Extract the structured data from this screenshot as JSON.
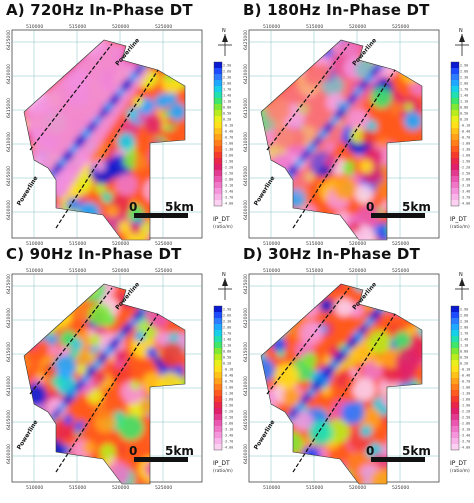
{
  "panels": [
    {
      "title": "A) 720Hz In-Phase DT",
      "bias": 0.9,
      "seed": 11
    },
    {
      "title": "B) 180Hz In-Phase DT",
      "bias": 0.45,
      "seed": 29
    },
    {
      "title": "C) 90Hz In-Phase DT",
      "bias": 0.15,
      "seed": 47
    },
    {
      "title": "D) 30Hz In-Phase DT",
      "bias": 0.1,
      "seed": 63
    }
  ],
  "map": {
    "x_ticks": [
      "510000",
      "515000",
      "520000",
      "525000"
    ],
    "y_ticks": [
      "6425000",
      "6420000",
      "6415000",
      "6410000",
      "6405000",
      "6400000"
    ],
    "scale_label": "5km",
    "scale_origin": "0",
    "powerline_label": "Powerline",
    "north_label": "N"
  },
  "legend": {
    "title": "IP_DT",
    "unit": "(ratio/m)",
    "values": [
      "2.90",
      "2.60",
      "2.30",
      "2.00",
      "1.70",
      "1.40",
      "1.10",
      "0.80",
      "0.50",
      "0.20",
      "-0.10",
      "-0.40",
      "-0.70",
      "-1.00",
      "-1.30",
      "-1.60",
      "-1.90",
      "-2.20",
      "-2.50",
      "-2.80",
      "-3.10",
      "-3.40",
      "-3.70",
      "-4.00"
    ],
    "colors": [
      "#0a1ad0",
      "#1f4bff",
      "#2d7bff",
      "#1fa8ff",
      "#17cfe8",
      "#22e0b0",
      "#3fe66a",
      "#7fe834",
      "#b9ec1e",
      "#e8ef1a",
      "#ffe01a",
      "#ffc21a",
      "#ffa11a",
      "#ff7d1a",
      "#ff5a1f",
      "#f53c2c",
      "#e8274a",
      "#e0206a",
      "#e23a8e",
      "#ea57b0",
      "#f076c8",
      "#f595db",
      "#f8b3e8",
      "#fbd0f1"
    ]
  }
}
